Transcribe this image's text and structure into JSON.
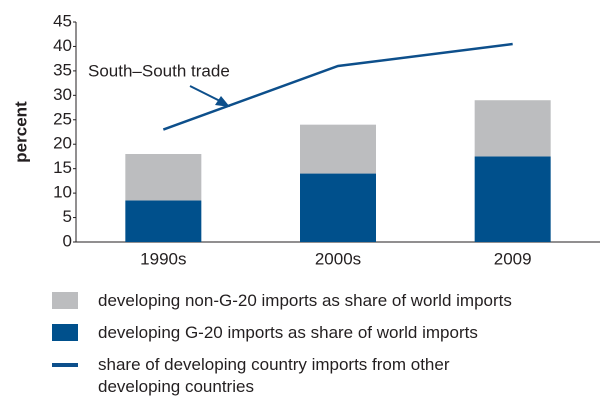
{
  "chart_data": {
    "type": "bar",
    "categories": [
      "1990s",
      "2000s",
      "2009"
    ],
    "series": [
      {
        "name": "developing non-G-20 imports as share of world imports",
        "type": "bar",
        "color": "#bcbdbf",
        "values": [
          9.5,
          10,
          11.5
        ]
      },
      {
        "name": "developing G-20 imports as share of world imports",
        "type": "bar",
        "color": "#00508c",
        "values": [
          8.5,
          14,
          17.5
        ]
      },
      {
        "name": "share of developing country imports from other developing countries",
        "type": "line",
        "color": "#0d4f8b",
        "values": [
          23,
          36,
          40.5
        ]
      }
    ],
    "stacked": true,
    "ylabel": "percent",
    "ylim": [
      0,
      45
    ],
    "yticks": [
      0,
      5,
      10,
      15,
      20,
      25,
      30,
      35,
      40,
      45
    ],
    "grid": false,
    "annotations": [
      {
        "text": "South–South trade"
      }
    ]
  }
}
